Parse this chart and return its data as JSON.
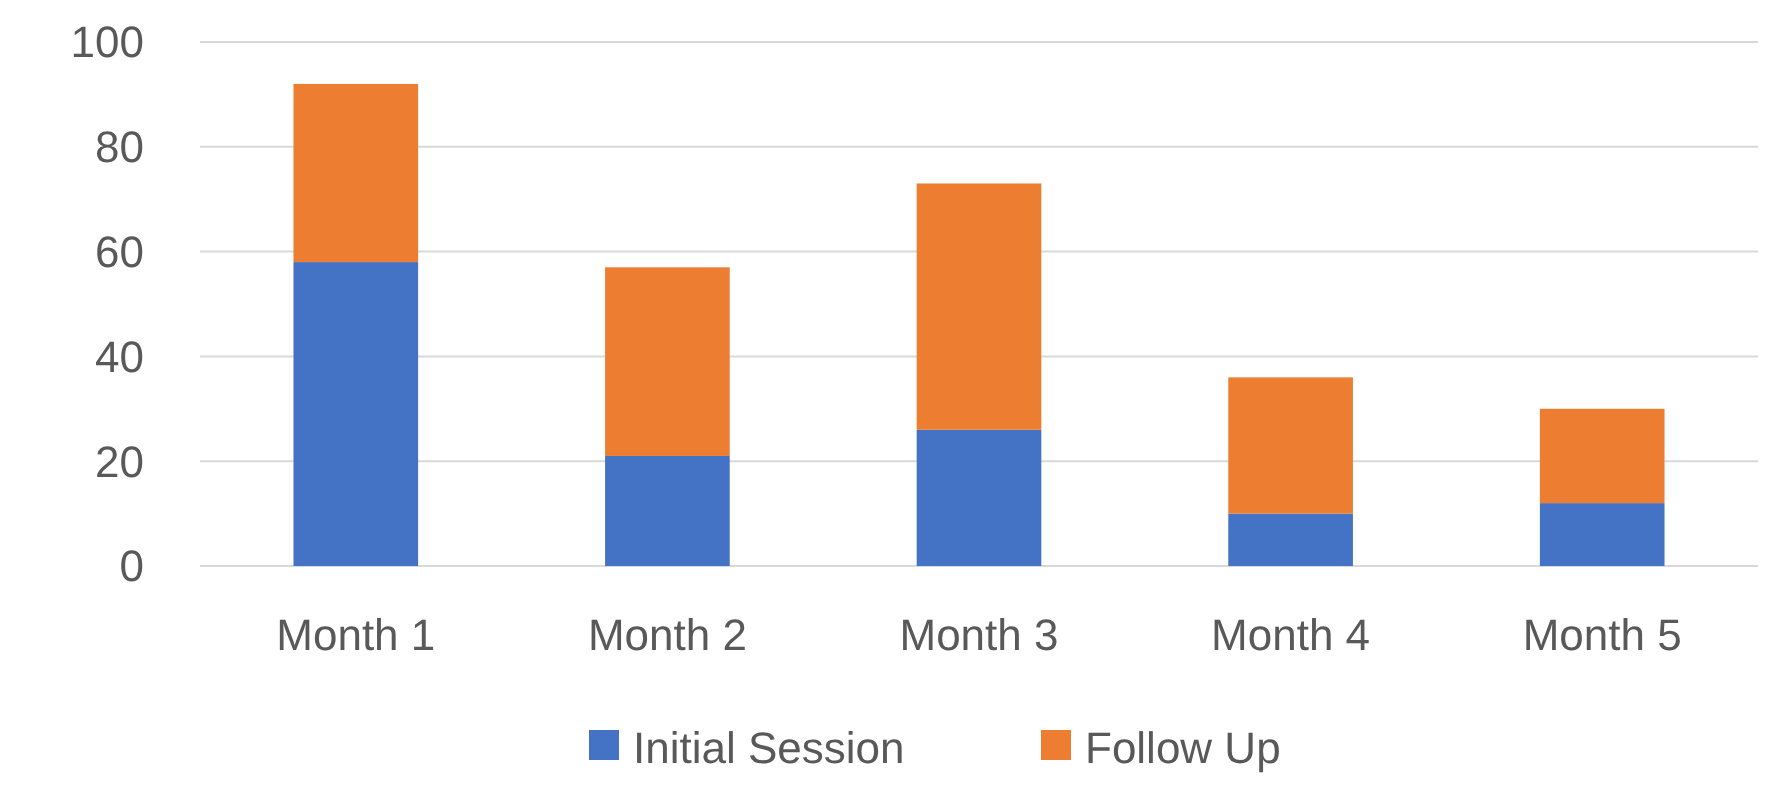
{
  "chart_data": {
    "type": "bar",
    "stacked": true,
    "categories": [
      "Month 1",
      "Month 2",
      "Month 3",
      "Month 4",
      "Month 5"
    ],
    "series": [
      {
        "name": "Initial Session",
        "color": "#4472c4",
        "values": [
          58,
          21,
          26,
          10,
          12
        ]
      },
      {
        "name": "Follow Up",
        "color": "#ed7d31",
        "values": [
          34,
          36,
          47,
          26,
          18
        ]
      }
    ],
    "ylim": [
      0,
      100
    ],
    "yticks": [
      0,
      20,
      40,
      60,
      80,
      100
    ],
    "grid": "y",
    "legend": "bottom"
  }
}
